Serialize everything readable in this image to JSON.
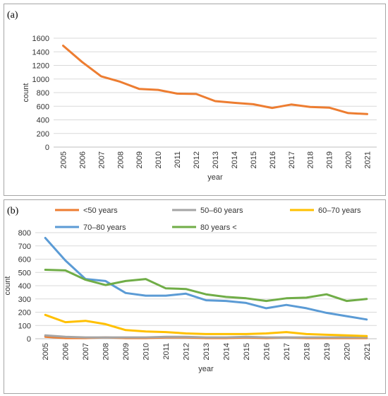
{
  "chart_data": [
    {
      "panel": "(a)",
      "type": "line",
      "x": [
        2005,
        2006,
        2007,
        2008,
        2009,
        2010,
        2011,
        2012,
        2013,
        2014,
        2015,
        2016,
        2017,
        2018,
        2019,
        2020,
        2021
      ],
      "series": [
        {
          "values": [
            1490,
            1250,
            1040,
            960,
            855,
            840,
            785,
            780,
            675,
            650,
            630,
            575,
            625,
            590,
            580,
            500,
            485
          ],
          "color": "#ed7d31"
        }
      ],
      "xlabel": "year",
      "ylabel": "count",
      "ylim": [
        0,
        1600
      ],
      "yticks": [
        0,
        200,
        400,
        600,
        800,
        1000,
        1200,
        1400,
        1600
      ],
      "grid": true,
      "legend": "none"
    },
    {
      "panel": "(b)",
      "type": "line",
      "x": [
        2005,
        2006,
        2007,
        2008,
        2009,
        2010,
        2011,
        2012,
        2013,
        2014,
        2015,
        2016,
        2017,
        2018,
        2019,
        2020,
        2021
      ],
      "series": [
        {
          "name": "<50 years",
          "color": "#ed7d31",
          "values": [
            15,
            5,
            5,
            10,
            5,
            5,
            10,
            10,
            5,
            5,
            10,
            5,
            10,
            5,
            5,
            5,
            5
          ]
        },
        {
          "name": "50–60 years",
          "color": "#a5a5a5",
          "values": [
            25,
            15,
            10,
            10,
            10,
            10,
            15,
            15,
            10,
            10,
            15,
            10,
            10,
            10,
            10,
            10,
            10
          ]
        },
        {
          "name": "60–70 years",
          "color": "#ffc000",
          "values": [
            180,
            125,
            135,
            110,
            65,
            55,
            50,
            40,
            35,
            35,
            35,
            40,
            50,
            35,
            30,
            25,
            20
          ]
        },
        {
          "name": "70–80 years",
          "color": "#5b9bd5",
          "values": [
            760,
            590,
            450,
            435,
            345,
            325,
            325,
            340,
            290,
            285,
            270,
            230,
            255,
            230,
            195,
            170,
            145
          ]
        },
        {
          "name": "80 years <",
          "color": "#70ad47",
          "values": [
            520,
            515,
            445,
            405,
            435,
            450,
            380,
            375,
            335,
            315,
            305,
            285,
            305,
            310,
            335,
            285,
            300
          ]
        }
      ],
      "xlabel": "year",
      "ylabel": "count",
      "ylim": [
        0,
        800
      ],
      "yticks": [
        0,
        100,
        200,
        300,
        400,
        500,
        600,
        700,
        800
      ],
      "grid": true,
      "legend": "top"
    }
  ]
}
